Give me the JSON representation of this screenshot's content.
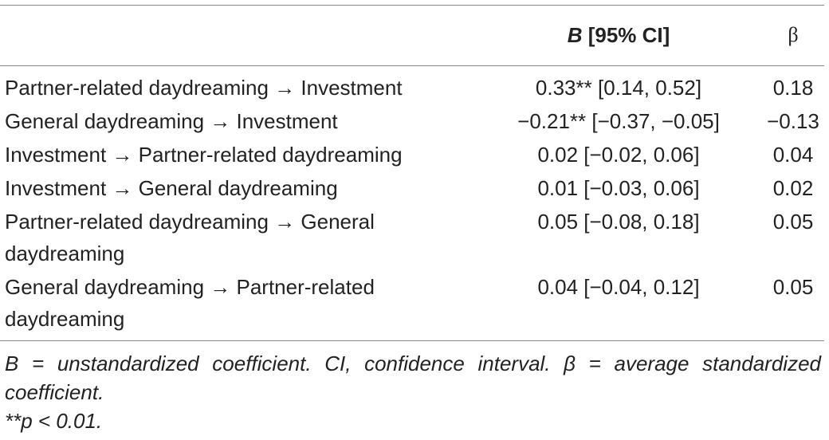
{
  "table": {
    "header": [
      null,
      {
        "italic": "B",
        "text": " [95% CI]"
      },
      "β"
    ],
    "rows": [
      [
        "Partner-related daydreaming → Investment",
        "0.33** [0.14, 0.52]",
        "0.18"
      ],
      [
        "General daydreaming → Investment",
        "−0.21** [−0.37, −0.05]",
        "−0.13"
      ],
      [
        "Investment → Partner-related daydreaming",
        "0.02 [−0.02, 0.06]",
        "0.04"
      ],
      [
        "Investment → General daydreaming",
        "0.01 [−0.03, 0.06]",
        "0.02"
      ],
      [
        "Partner-related daydreaming → General daydreaming",
        "0.05 [−0.08, 0.18]",
        "0.05"
      ],
      [
        "General daydreaming → Partner-related daydreaming",
        "0.04 [−0.04, 0.12]",
        "0.05"
      ]
    ]
  },
  "notes": [
    "B = unstandardized coefficient. CI, confidence interval. β = average standardized coefficient.",
    "**p < 0.01."
  ]
}
